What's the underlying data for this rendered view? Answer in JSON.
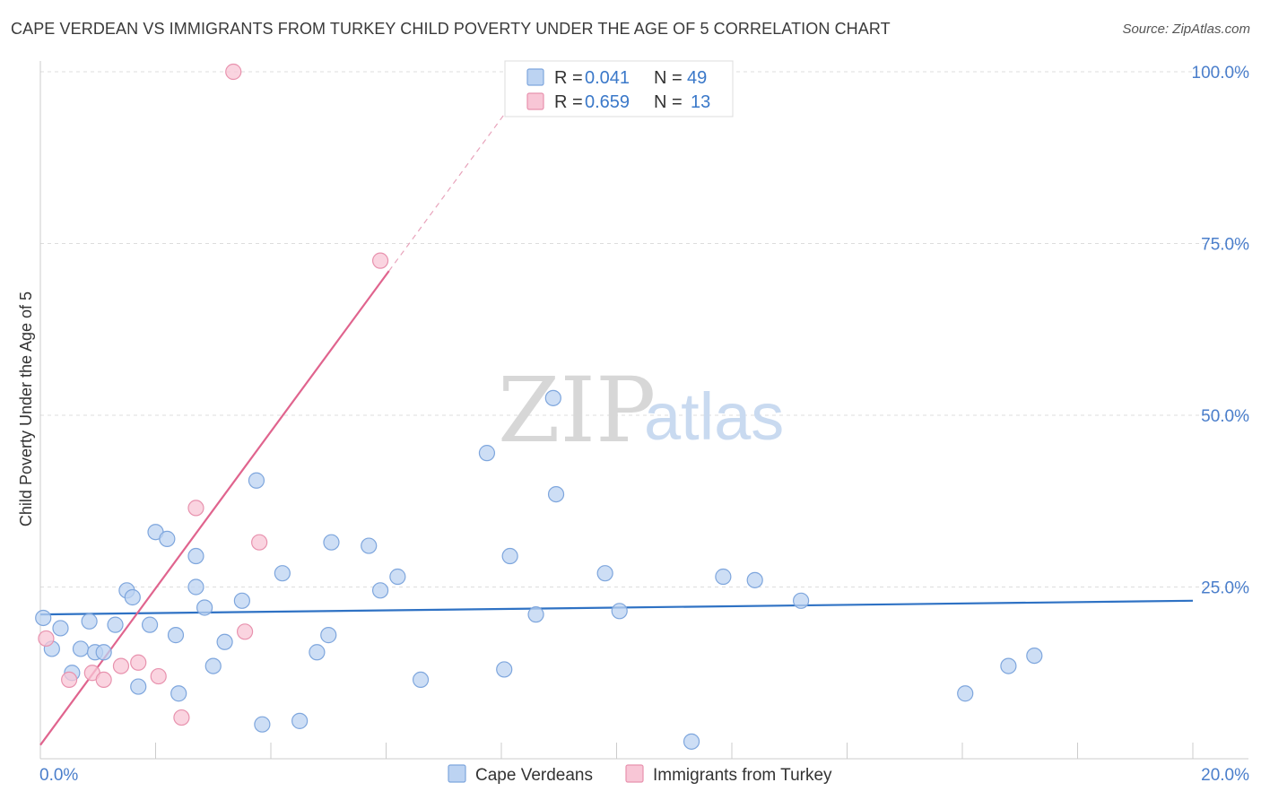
{
  "title": "CAPE VERDEAN VS IMMIGRANTS FROM TURKEY CHILD POVERTY UNDER THE AGE OF 5 CORRELATION CHART",
  "source": "Source: ZipAtlas.com",
  "watermark": {
    "zip": "ZIP",
    "atlas": "atlas"
  },
  "colors": {
    "blue_fill": "#bcd3f2",
    "blue_stroke": "#7ea6dd",
    "blue_line": "#2f72c4",
    "pink_fill": "#f8c6d6",
    "pink_stroke": "#e892ae",
    "pink_line": "#e0648e",
    "grid": "#dddddd",
    "tick_text": "#4a7ecb"
  },
  "legend": [
    {
      "r_label": "R =",
      "r_value": "0.041",
      "n_label": "N =",
      "n_value": "49"
    },
    {
      "r_label": "R =",
      "r_value": "0.659",
      "n_label": "N =",
      "n_value": "13"
    }
  ],
  "chart_data": {
    "type": "scatter",
    "title": "CAPE VERDEAN VS IMMIGRANTS FROM TURKEY CHILD POVERTY UNDER THE AGE OF 5 CORRELATION CHART",
    "xlabel": "",
    "ylabel": "Child Poverty Under the Age of 5",
    "xlim": [
      0,
      20
    ],
    "ylim": [
      0,
      100
    ],
    "x_tick_labels": [
      "0.0%",
      "20.0%"
    ],
    "y_tick_labels": [
      "25.0%",
      "50.0%",
      "75.0%",
      "100.0%"
    ],
    "series": [
      {
        "name": "Cape Verdeans",
        "color": "#bcd3f2",
        "r": 0.041,
        "n": 49,
        "trend": [
          [
            0,
            21.0
          ],
          [
            20,
            23.0
          ]
        ],
        "points": [
          [
            0.05,
            20.5
          ],
          [
            0.2,
            16.0
          ],
          [
            0.35,
            19.0
          ],
          [
            0.55,
            12.5
          ],
          [
            0.7,
            16.0
          ],
          [
            0.85,
            20.0
          ],
          [
            0.95,
            15.5
          ],
          [
            1.1,
            15.5
          ],
          [
            1.3,
            19.5
          ],
          [
            1.5,
            24.5
          ],
          [
            1.6,
            23.5
          ],
          [
            1.7,
            10.5
          ],
          [
            1.9,
            19.5
          ],
          [
            2.0,
            33.0
          ],
          [
            2.2,
            32.0
          ],
          [
            2.35,
            18.0
          ],
          [
            2.4,
            9.5
          ],
          [
            2.7,
            29.5
          ],
          [
            2.7,
            25.0
          ],
          [
            2.85,
            22.0
          ],
          [
            3.0,
            13.5
          ],
          [
            3.2,
            17.0
          ],
          [
            3.5,
            23.0
          ],
          [
            3.75,
            40.5
          ],
          [
            3.85,
            5.0
          ],
          [
            4.2,
            27.0
          ],
          [
            4.5,
            5.5
          ],
          [
            4.8,
            15.5
          ],
          [
            5.0,
            18.0
          ],
          [
            5.05,
            31.5
          ],
          [
            5.7,
            31.0
          ],
          [
            5.9,
            24.5
          ],
          [
            6.2,
            26.5
          ],
          [
            6.6,
            11.5
          ],
          [
            7.75,
            44.5
          ],
          [
            8.05,
            13.0
          ],
          [
            8.15,
            29.5
          ],
          [
            8.6,
            21.0
          ],
          [
            8.9,
            52.5
          ],
          [
            8.95,
            38.5
          ],
          [
            9.8,
            27.0
          ],
          [
            10.05,
            21.5
          ],
          [
            11.3,
            2.5
          ],
          [
            11.85,
            26.5
          ],
          [
            12.4,
            26.0
          ],
          [
            13.2,
            23.0
          ],
          [
            16.05,
            9.5
          ],
          [
            16.8,
            13.5
          ],
          [
            17.25,
            15.0
          ]
        ]
      },
      {
        "name": "Immigrants from Turkey",
        "color": "#f8c6d6",
        "r": 0.659,
        "n": 13,
        "trend": [
          [
            0,
            2.0
          ],
          [
            6.05,
            71.0
          ]
        ],
        "trend_dashed_to": [
          8.2,
          95.5
        ],
        "points": [
          [
            0.1,
            17.5
          ],
          [
            0.5,
            11.5
          ],
          [
            0.9,
            12.5
          ],
          [
            1.1,
            11.5
          ],
          [
            1.4,
            13.5
          ],
          [
            1.7,
            14.0
          ],
          [
            2.05,
            12.0
          ],
          [
            2.45,
            6.0
          ],
          [
            2.7,
            36.5
          ],
          [
            3.35,
            100.0
          ],
          [
            3.55,
            18.5
          ],
          [
            3.8,
            31.5
          ],
          [
            5.9,
            72.5
          ]
        ]
      }
    ]
  }
}
